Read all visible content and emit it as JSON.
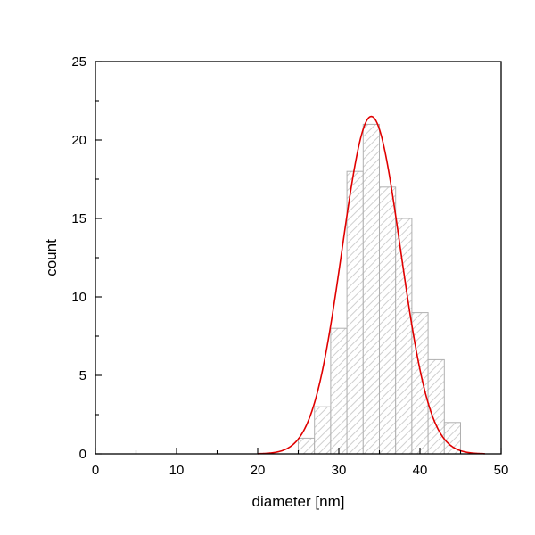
{
  "chart_data": {
    "type": "bar",
    "xlabel": "diameter [nm]",
    "ylabel": "count",
    "xlim": [
      0,
      50
    ],
    "ylim": [
      0,
      25
    ],
    "x_ticks": [
      0,
      10,
      20,
      30,
      40,
      50
    ],
    "y_ticks": [
      0,
      5,
      10,
      15,
      20,
      25
    ],
    "grid": false,
    "bin_width": 2,
    "bins": [
      {
        "x": 26,
        "count": 1
      },
      {
        "x": 28,
        "count": 3
      },
      {
        "x": 30,
        "count": 8
      },
      {
        "x": 32,
        "count": 18
      },
      {
        "x": 34,
        "count": 21
      },
      {
        "x": 36,
        "count": 17
      },
      {
        "x": 38,
        "count": 15
      },
      {
        "x": 40,
        "count": 9
      },
      {
        "x": 42,
        "count": 6
      },
      {
        "x": 44,
        "count": 2
      }
    ],
    "fit": {
      "type": "gaussian",
      "center": 34,
      "amplitude": 21.5,
      "sigma": 3.6
    },
    "colors": {
      "bar_fill": "#d6d6d6",
      "bar_stroke": "#b0b0b0",
      "fit_line": "#e00000"
    }
  }
}
